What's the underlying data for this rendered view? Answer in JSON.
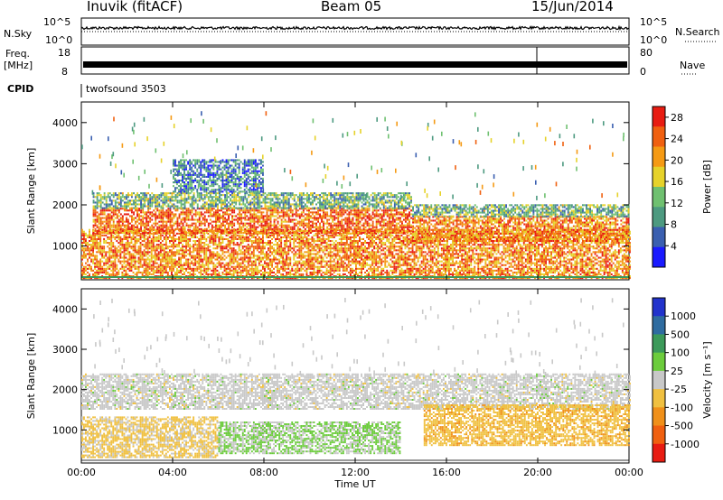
{
  "header": {
    "station": "Inuvik (fitACF)",
    "beam": "Beam 05",
    "date": "15/Jun/2014"
  },
  "panels": {
    "nsky": {
      "label": "N.Sky",
      "left_ticks": [
        "10^5",
        "10^0"
      ]
    },
    "nsearch": {
      "label": "N.Search",
      "right_ticks": [
        "10^5",
        "10^0"
      ]
    },
    "freq": {
      "label_line1": "Freq.",
      "label_line2": "[MHz]",
      "left_ticks": [
        "18",
        "8"
      ]
    },
    "nave": {
      "label": "Nave",
      "right_ticks": [
        "80",
        "0"
      ]
    },
    "cpid": {
      "label": "CPID",
      "value": "twofsound 3503"
    }
  },
  "colors": {
    "nsky_line": "#000000",
    "nsearch_line": "#000000",
    "freq_band": "#000000",
    "white": "#ffffff"
  },
  "chart_data": [
    {
      "type": "heatmap",
      "title": "",
      "ylabel": "Slant Range [km]",
      "xlabel": "",
      "x_ticks": [
        "00:00",
        "04:00",
        "08:00",
        "12:00",
        "16:00",
        "20:00",
        "00:00"
      ],
      "y_ticks": [
        1000,
        2000,
        3000,
        4000
      ],
      "ylim": [
        180,
        4500
      ],
      "colorbar": {
        "label": "Power [dB]",
        "ticks": [
          4,
          8,
          12,
          16,
          20,
          24,
          28
        ],
        "range": [
          0,
          30
        ],
        "colors": [
          "#1a1aff",
          "#3a5fb0",
          "#4d9a80",
          "#6fc070",
          "#e6d22a",
          "#f59a14",
          "#f06010",
          "#e81c12"
        ]
      },
      "bands": [
        {
          "start_h": 0.0,
          "end_h": 24.0,
          "low_km": 200,
          "high_km": 1400,
          "level": 22
        },
        {
          "start_h": 0.5,
          "end_h": 14.5,
          "low_km": 1300,
          "high_km": 1900,
          "level": 24
        },
        {
          "start_h": 0.5,
          "end_h": 14.5,
          "low_km": 1900,
          "high_km": 2300,
          "level": 12
        },
        {
          "start_h": 14.5,
          "end_h": 24.0,
          "low_km": 1100,
          "high_km": 1700,
          "level": 22
        },
        {
          "start_h": 14.5,
          "end_h": 24.0,
          "low_km": 1700,
          "high_km": 2000,
          "level": 12
        },
        {
          "start_h": 4.0,
          "end_h": 8.0,
          "low_km": 2300,
          "high_km": 3100,
          "level": 8
        }
      ]
    },
    {
      "type": "heatmap",
      "title": "",
      "ylabel": "Slant Range [km]",
      "xlabel": "Time UT",
      "x_ticks": [
        "00:00",
        "04:00",
        "08:00",
        "12:00",
        "16:00",
        "20:00",
        "00:00"
      ],
      "y_ticks": [
        1000,
        2000,
        3000,
        4000
      ],
      "ylim": [
        180,
        4500
      ],
      "colorbar": {
        "label": "Velocity [m s⁻¹]",
        "ticks": [
          1000,
          500,
          100,
          25,
          -25,
          -100,
          -500,
          -1000
        ],
        "range": [
          -1200,
          1200
        ],
        "colors": [
          "#2233cc",
          "#2f6ca0",
          "#3c9a5a",
          "#6ccc3c",
          "#c8c8c8",
          "#f0c040",
          "#f0901a",
          "#f06010",
          "#e81c12"
        ]
      },
      "bands": [
        {
          "start_h": 0.0,
          "end_h": 24.0,
          "low_km": 1500,
          "high_km": 2400,
          "level": 0
        },
        {
          "start_h": 0.0,
          "end_h": 6.0,
          "low_km": 300,
          "high_km": 1300,
          "level": -200
        },
        {
          "start_h": 6.0,
          "end_h": 14.0,
          "low_km": 400,
          "high_km": 1200,
          "level": 150
        },
        {
          "start_h": 15.0,
          "end_h": 24.0,
          "low_km": 600,
          "high_km": 1600,
          "level": -300
        }
      ]
    }
  ]
}
